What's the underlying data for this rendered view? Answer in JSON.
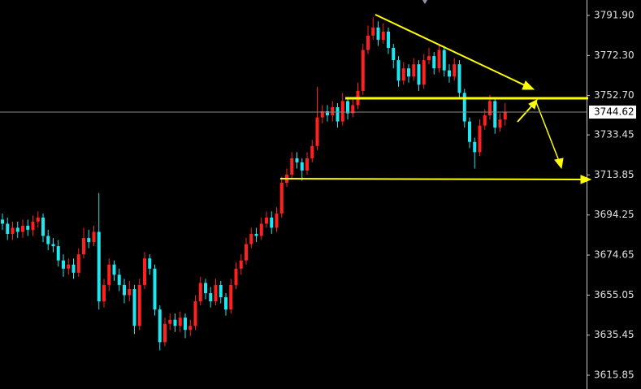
{
  "chart_data": {
    "type": "candlestick",
    "up_color": "#ff2020",
    "down_color": "#1fe6f0",
    "ylim": [
      3609.1,
      3799.45
    ],
    "yticks": [
      {
        "value": 3791.9,
        "label": "3791.90"
      },
      {
        "value": 3772.3,
        "label": "3772.30"
      },
      {
        "value": 3752.7,
        "label": "3752.70"
      },
      3733.45,
      3713.85,
      3694.25,
      3674.65,
      3655.05,
      3635.45,
      3615.85
    ],
    "current_price": 3744.62,
    "open": [
      3692,
      3690,
      3685,
      3688,
      3686,
      3689,
      3687,
      3691,
      3693,
      3684,
      3680,
      3679,
      3672,
      3668,
      3670,
      3666,
      3675,
      3683,
      3681,
      3686,
      3652,
      3660,
      3670,
      3665,
      3660,
      3655,
      3658,
      3640,
      3660,
      3673,
      3668,
      3648,
      3632,
      3641,
      3643,
      3640,
      3644,
      3638,
      3640,
      3652,
      3661,
      3656,
      3652,
      3660,
      3654,
      3648,
      3660,
      3668,
      3672,
      3680,
      3685,
      3684,
      3690,
      3693,
      3688,
      3695,
      3710,
      3714,
      3722,
      3720,
      3716,
      3722,
      3728,
      3742,
      3745,
      3743,
      3747,
      3740,
      3750,
      3744,
      3748,
      3755,
      3775,
      3782,
      3786,
      3780,
      3784,
      3776,
      3770,
      3760,
      3766,
      3762,
      3768,
      3758,
      3770,
      3772,
      3766,
      3775,
      3765,
      3762,
      3768,
      3754,
      3740,
      3730,
      3725,
      3738,
      3743,
      3750,
      3737,
      3741
    ],
    "high": [
      3695,
      3693,
      3691,
      3691,
      3692,
      3692,
      3694,
      3696,
      3695,
      3687,
      3683,
      3682,
      3675,
      3673,
      3673,
      3678,
      3688,
      3687,
      3689,
      3705,
      3663,
      3673,
      3672,
      3668,
      3663,
      3662,
      3660,
      3663,
      3676,
      3675,
      3670,
      3650,
      3644,
      3646,
      3646,
      3647,
      3646,
      3643,
      3655,
      3664,
      3663,
      3659,
      3663,
      3662,
      3656,
      3663,
      3671,
      3675,
      3683,
      3688,
      3688,
      3693,
      3696,
      3696,
      3698,
      3713,
      3717,
      3725,
      3725,
      3722,
      3725,
      3731,
      3757,
      3748,
      3748,
      3750,
      3749,
      3754,
      3752,
      3751,
      3759,
      3778,
      3787,
      3791,
      3789,
      3788,
      3786,
      3778,
      3772,
      3769,
      3768,
      3771,
      3770,
      3773,
      3776,
      3774,
      3778,
      3777,
      3768,
      3771,
      3770,
      3756,
      3742,
      3732,
      3741,
      3746,
      3753,
      3752,
      3744,
      3749
    ],
    "low": [
      3687,
      3682,
      3682,
      3683,
      3683,
      3684,
      3684,
      3688,
      3681,
      3677,
      3676,
      3669,
      3664,
      3665,
      3663,
      3664,
      3673,
      3678,
      3679,
      3648,
      3649,
      3657,
      3662,
      3657,
      3651,
      3652,
      3636,
      3638,
      3658,
      3665,
      3645,
      3628,
      3630,
      3638,
      3637,
      3637,
      3634,
      3635,
      3638,
      3650,
      3653,
      3649,
      3650,
      3651,
      3645,
      3646,
      3658,
      3665,
      3670,
      3678,
      3681,
      3682,
      3688,
      3685,
      3686,
      3693,
      3708,
      3712,
      3717,
      3711,
      3714,
      3720,
      3726,
      3739,
      3740,
      3740,
      3737,
      3738,
      3741,
      3742,
      3746,
      3753,
      3773,
      3780,
      3777,
      3778,
      3773,
      3766,
      3757,
      3758,
      3759,
      3760,
      3755,
      3756,
      3768,
      3763,
      3764,
      3762,
      3759,
      3760,
      3751,
      3737,
      3727,
      3717,
      3723,
      3736,
      3741,
      3734,
      3735,
      3738
    ],
    "close": [
      3690,
      3685,
      3688,
      3686,
      3689,
      3687,
      3691,
      3693,
      3684,
      3680,
      3679,
      3672,
      3668,
      3670,
      3666,
      3675,
      3683,
      3681,
      3686,
      3652,
      3660,
      3670,
      3665,
      3660,
      3655,
      3658,
      3640,
      3660,
      3673,
      3668,
      3648,
      3632,
      3641,
      3643,
      3640,
      3644,
      3638,
      3640,
      3652,
      3661,
      3656,
      3652,
      3660,
      3654,
      3648,
      3660,
      3668,
      3672,
      3680,
      3685,
      3684,
      3690,
      3693,
      3688,
      3695,
      3710,
      3714,
      3722,
      3720,
      3716,
      3722,
      3728,
      3742,
      3745,
      3743,
      3747,
      3740,
      3750,
      3744,
      3748,
      3755,
      3775,
      3782,
      3786,
      3780,
      3784,
      3776,
      3770,
      3760,
      3766,
      3762,
      3768,
      3758,
      3770,
      3772,
      3766,
      3775,
      3765,
      3762,
      3768,
      3754,
      3740,
      3730,
      3725,
      3738,
      3743,
      3750,
      3737,
      3741,
      3744.62
    ]
  }
}
